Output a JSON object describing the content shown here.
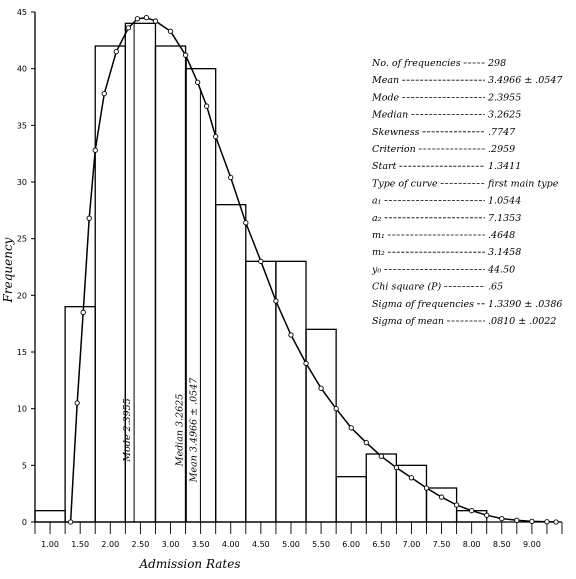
{
  "chart_data": {
    "type": "histogram",
    "xlabel": "Admission Rates",
    "ylabel": "Frequency",
    "xlim": [
      0.75,
      9.5
    ],
    "ylim": [
      0,
      45
    ],
    "x_tick_labels": [
      "1.00",
      "1.50",
      "2.00",
      "2.50",
      "3.00",
      "3.50",
      "4.00",
      "4.50",
      "5.00",
      "5.50",
      "6.00",
      "6.50",
      "7.00",
      "7.50",
      "8.00",
      "8.50",
      "9.00"
    ],
    "y_tick_labels": [
      "0",
      "5",
      "10",
      "15",
      "20",
      "25",
      "30",
      "35",
      "40",
      "45"
    ],
    "histogram": {
      "bin_edges": [
        0.75,
        1.25,
        1.75,
        2.25,
        2.75,
        3.25,
        3.75,
        4.25,
        4.75,
        5.25,
        5.75,
        6.25,
        6.75,
        7.25,
        7.75,
        8.25,
        8.75,
        9.25
      ],
      "counts": [
        1,
        19,
        42,
        44,
        42,
        40,
        28,
        23,
        23,
        17,
        4,
        6,
        5,
        3,
        1,
        0,
        0
      ]
    },
    "fitted_curve": {
      "name": "Type of curve first main type",
      "points": [
        [
          1.341,
          0
        ],
        [
          1.45,
          10.5
        ],
        [
          1.55,
          18.5
        ],
        [
          1.65,
          26.8
        ],
        [
          1.75,
          32.8
        ],
        [
          1.9,
          37.8
        ],
        [
          2.1,
          41.5
        ],
        [
          2.3,
          43.6
        ],
        [
          2.45,
          44.4
        ],
        [
          2.6,
          44.5
        ],
        [
          2.75,
          44.2
        ],
        [
          3.0,
          43.3
        ],
        [
          3.25,
          41.2
        ],
        [
          3.45,
          38.8
        ],
        [
          3.6,
          36.7
        ],
        [
          3.75,
          34.0
        ],
        [
          4.0,
          30.4
        ],
        [
          4.25,
          26.4
        ],
        [
          4.5,
          23.0
        ],
        [
          4.75,
          19.5
        ],
        [
          5.0,
          16.5
        ],
        [
          5.25,
          14.0
        ],
        [
          5.5,
          11.8
        ],
        [
          5.75,
          10.0
        ],
        [
          6.0,
          8.3
        ],
        [
          6.25,
          7.0
        ],
        [
          6.5,
          5.8
        ],
        [
          6.75,
          4.8
        ],
        [
          7.0,
          3.9
        ],
        [
          7.25,
          3.0
        ],
        [
          7.5,
          2.2
        ],
        [
          7.75,
          1.5
        ],
        [
          8.0,
          1.0
        ],
        [
          8.25,
          0.6
        ],
        [
          8.5,
          0.3
        ],
        [
          8.75,
          0.15
        ],
        [
          9.0,
          0.05
        ],
        [
          9.25,
          0.02
        ],
        [
          9.4,
          0
        ]
      ]
    },
    "vertical_lines": [
      {
        "x": 2.3955,
        "label": "Mode 2.3955"
      },
      {
        "x": 3.2625,
        "label": "Median 3.2625"
      },
      {
        "x": 3.4966,
        "label": "Mean 3.4966 ± .0547"
      }
    ],
    "statistics": [
      {
        "label": "No. of frequencies",
        "value": "298"
      },
      {
        "label": "Mean",
        "value": "3.4966 ± .0547"
      },
      {
        "label": "Mode",
        "value": "2.3955"
      },
      {
        "label": "Median",
        "value": "3.2625"
      },
      {
        "label": "Skewness",
        "value": ".7747"
      },
      {
        "label": "Criterion",
        "value": ".2959"
      },
      {
        "label": "Start",
        "value": "1.3411"
      },
      {
        "label": "Type of curve",
        "value": "first main type"
      },
      {
        "label": "a₁",
        "value": "1.0544"
      },
      {
        "label": "a₂",
        "value": "7.1353"
      },
      {
        "label": "m₁",
        "value": ".4648"
      },
      {
        "label": "m₂",
        "value": "3.1458"
      },
      {
        "label": "y₀",
        "value": "44.50"
      },
      {
        "label": "Chi square (P)",
        "value": ".65"
      },
      {
        "label": "Sigma of frequencies",
        "value": "1.3390 ± .0386"
      },
      {
        "label": "Sigma of mean",
        "value": ".0810 ± .0022"
      }
    ]
  }
}
